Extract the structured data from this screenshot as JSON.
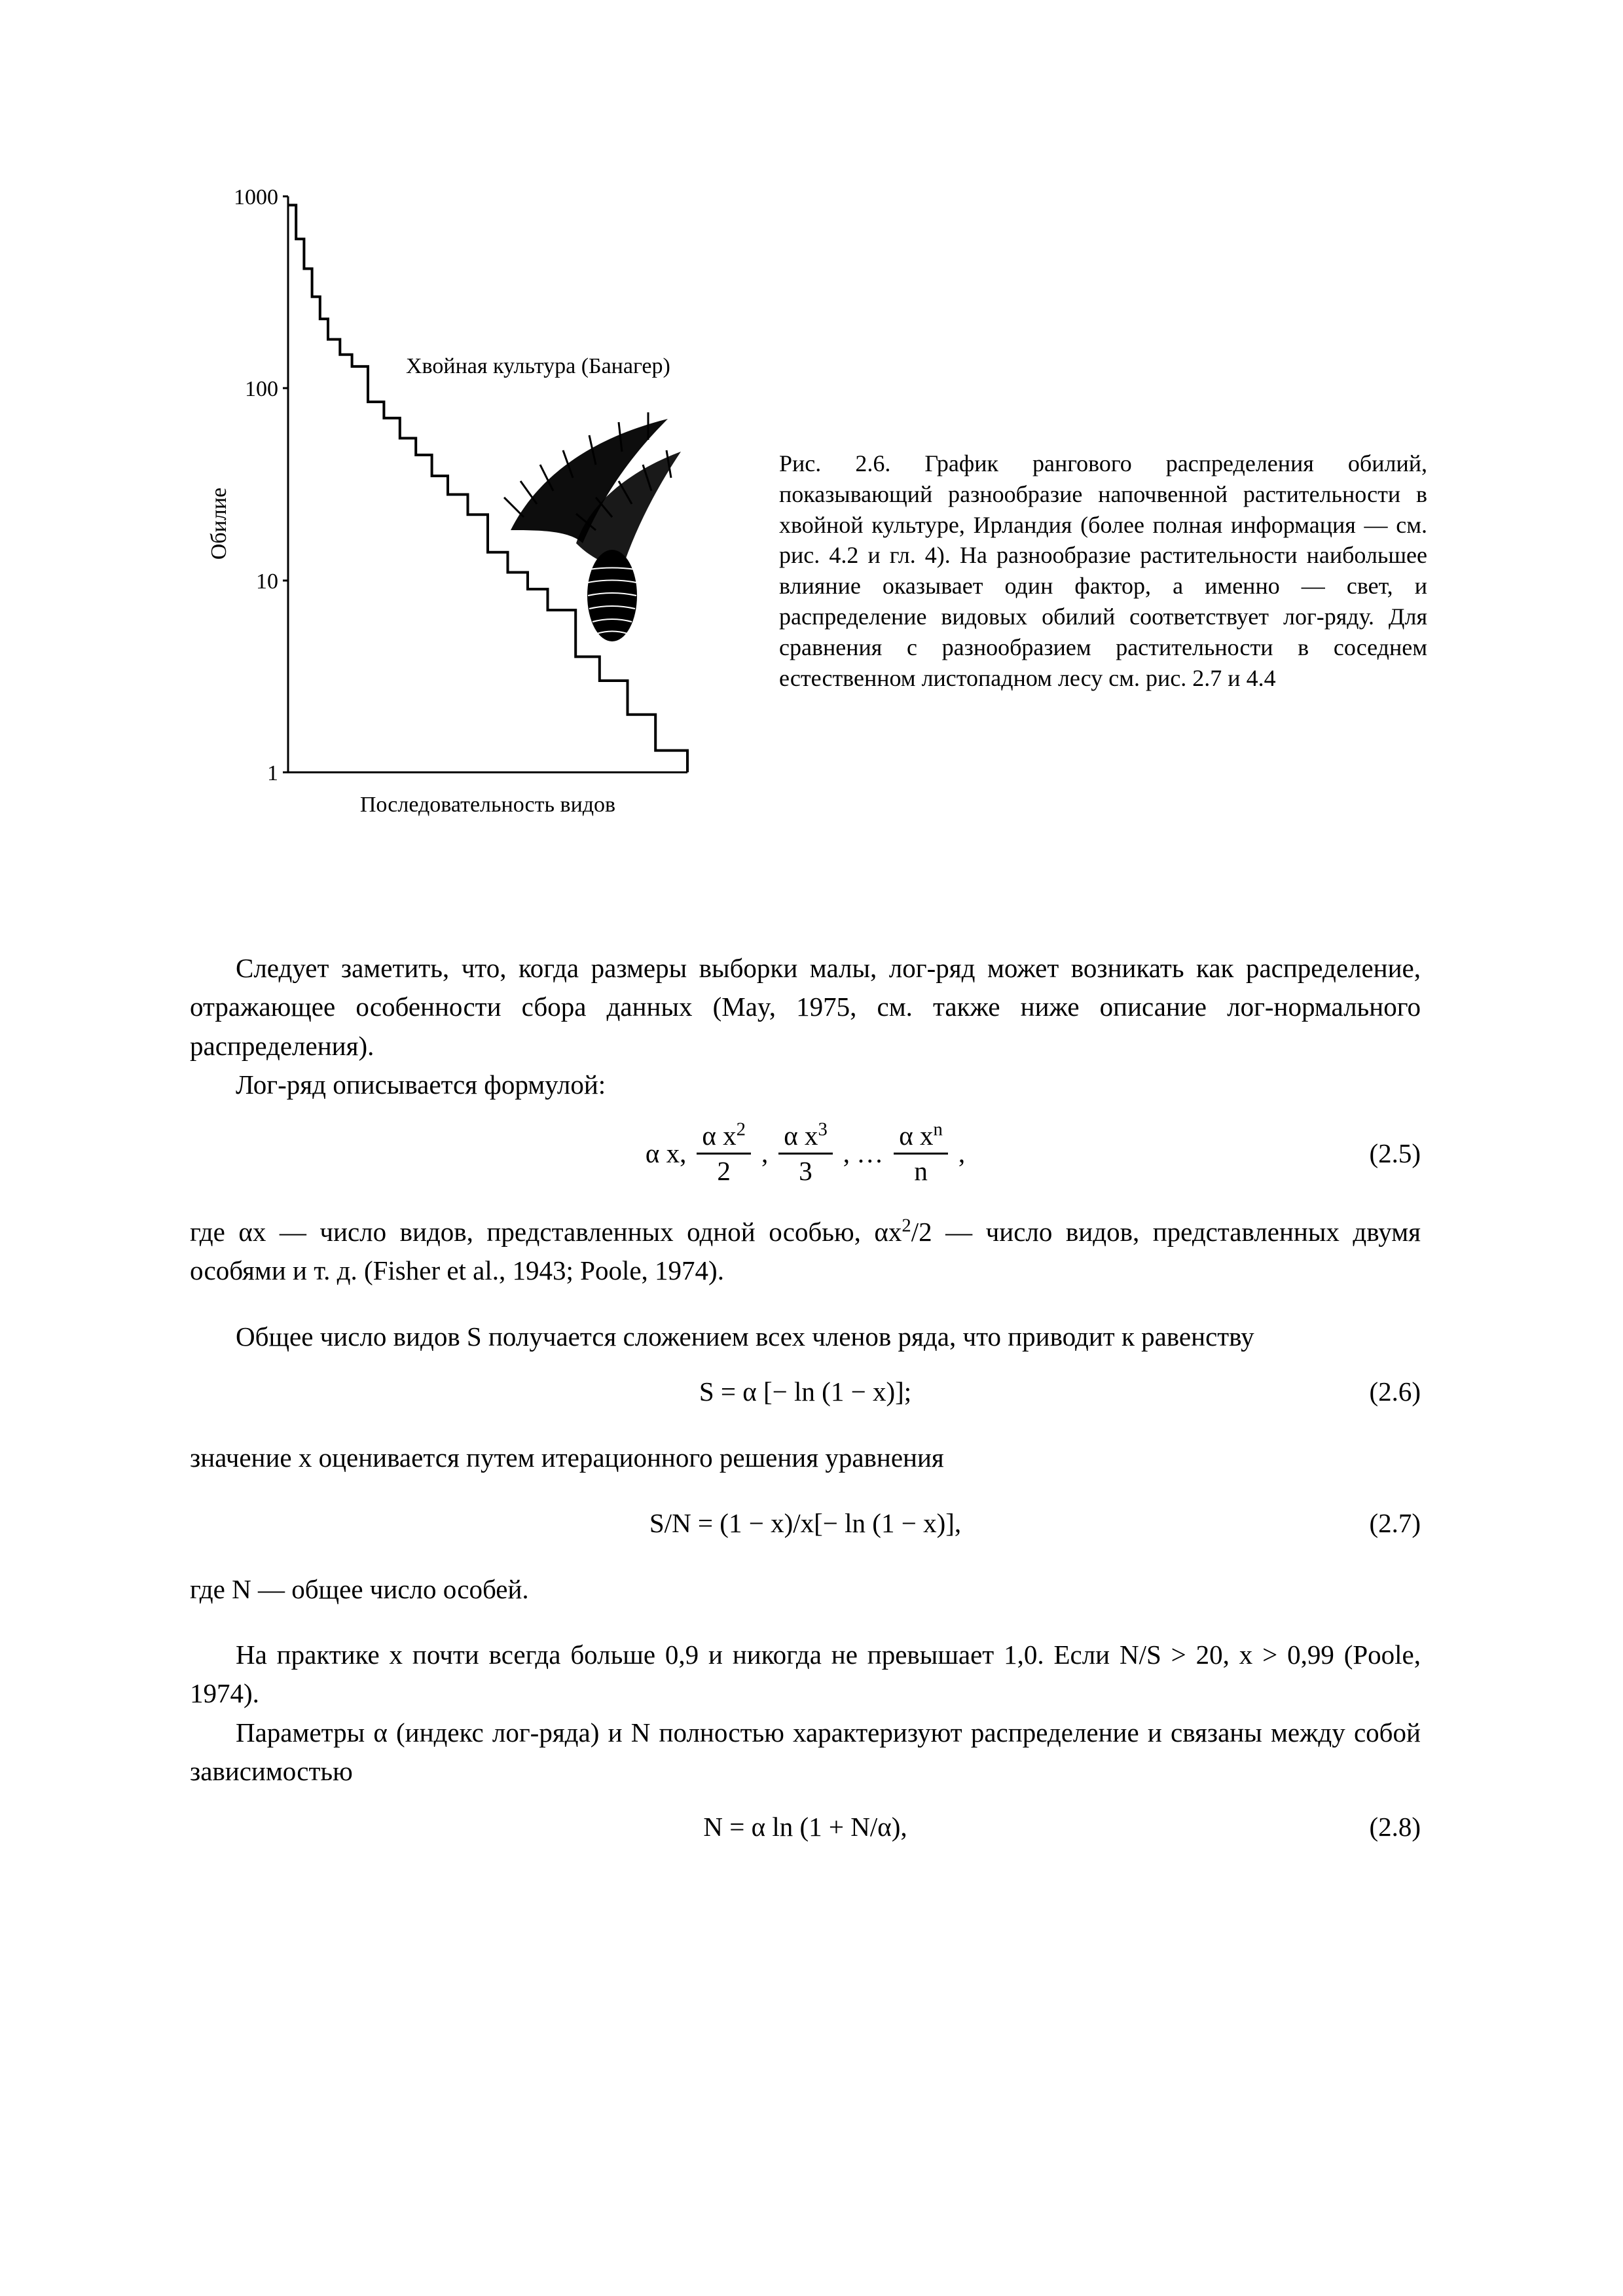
{
  "figure": {
    "chart": {
      "type": "line",
      "yaxis_label": "Обилие",
      "xaxis_label": "Последовательность видов",
      "annotation": "Хвойная культура (Банагер)",
      "ylim": [
        1,
        1000
      ],
      "yscale": "log",
      "yticks": [
        1,
        10,
        100,
        1000
      ],
      "ytick_labels": [
        "1",
        "10",
        "100",
        "1000"
      ],
      "xlim": [
        0,
        1
      ],
      "line_color": "#000000",
      "line_width": 2,
      "background_color": "#ffffff",
      "label_fontsize": 34,
      "points_x": [
        0.0,
        0.02,
        0.04,
        0.06,
        0.08,
        0.1,
        0.13,
        0.16,
        0.2,
        0.24,
        0.28,
        0.32,
        0.36,
        0.4,
        0.45,
        0.5,
        0.55,
        0.6,
        0.65,
        0.72,
        0.78,
        0.85,
        0.92,
        1.0
      ],
      "points_abundance": [
        900,
        600,
        420,
        300,
        230,
        180,
        150,
        130,
        85,
        70,
        55,
        45,
        35,
        28,
        22,
        14,
        11,
        9,
        7,
        4,
        3,
        2,
        1.3,
        1
      ]
    },
    "caption": "Рис. 2.6. График рангового распределения обилий, показывающий разнообразие напочвенной растительности в хвойной культуре, Ирландия (более полная информация — см. рис. 4.2 и гл. 4). На разнообразие растительности наибольшее влияние оказывает один фактор, а именно — свет, и распределение видовых обилий соответствует лог-ряду. Для сравнения с разнообразием растительности в соседнем естественном листопадном лесу см. рис. 2.7 и 4.4"
  },
  "paragraphs": {
    "p1": "Следует заметить, что, когда размеры выборки малы, лог-ряд может возникать как распределение, отражающее особенности сбора данных (May, 1975, см. также ниже описание лог-нормального распределения).",
    "p2": "Лог-ряд описывается формулой:",
    "p3a": "где αx — число видов, представленных одной особью, αx",
    "p3b": "/2 — число видов, представленных двумя особями и т. д. (Fisher et al., 1943; Poole, 1974).",
    "p4": "Общее число видов S получается сложением всех членов ряда, что приводит к равенству",
    "p5": "значение x оценивается путем итерационного решения уравнения",
    "p6": "где N — общее число особей.",
    "p7": "На практике x почти всегда больше 0,9 и никогда не превышает 1,0. Если N/S > 20, x > 0,99 (Poole, 1974).",
    "p8": "Параметры α (индекс лог-ряда) и N полностью характеризуют распределение и связаны между собой зависимостью"
  },
  "equations": {
    "e25": {
      "plain": "α x, α x²/2, α x³/3, … α xⁿ/n ,",
      "num": "(2.5)"
    },
    "e26": {
      "plain": "S = α [− ln (1 − x)];",
      "num": "(2.6)"
    },
    "e27": {
      "plain": "S/N = (1 − x)/x[− ln (1 − x)],",
      "num": "(2.7)"
    },
    "e28": {
      "plain": "N = α ln (1 + N/α),",
      "num": "(2.8)"
    }
  }
}
